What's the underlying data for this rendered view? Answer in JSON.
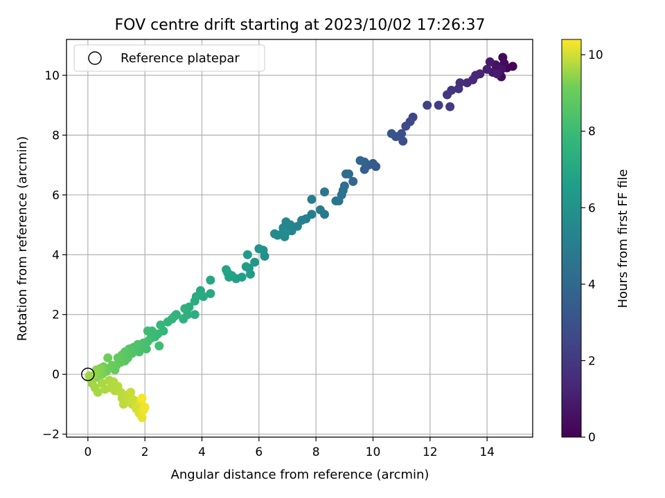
{
  "chart_data": {
    "type": "scatter",
    "title": "FOV centre drift starting at 2023/10/02 17:26:37",
    "xlabel": "Angular distance from reference (arcmin)",
    "ylabel": "Rotation from reference (arcmin)",
    "xlim": [
      -0.75,
      15.6
    ],
    "ylim": [
      -2.1,
      11.2
    ],
    "xticks": [
      0,
      2,
      4,
      6,
      8,
      10,
      12,
      14
    ],
    "yticks": [
      -2,
      0,
      2,
      4,
      6,
      8,
      10
    ],
    "grid": true,
    "legend": {
      "placement": "top-left",
      "entries": [
        "Reference platepar"
      ]
    },
    "reference_point": {
      "x": 0,
      "y": 0,
      "marker": "open-circle",
      "label": "Reference platepar"
    },
    "colorbar": {
      "label": "Hours from first FF file",
      "range": [
        0,
        10.4
      ],
      "ticks": [
        0,
        2,
        4,
        6,
        8,
        10
      ],
      "colormap": "viridis"
    },
    "series": [
      {
        "color_by": "hours",
        "points": [
          {
            "x": 14.9,
            "y": 10.3,
            "hours": 0.05
          },
          {
            "x": 14.7,
            "y": 10.25,
            "hours": 0.12
          },
          {
            "x": 14.55,
            "y": 10.6,
            "hours": 0.2
          },
          {
            "x": 14.5,
            "y": 9.95,
            "hours": 0.28
          },
          {
            "x": 14.6,
            "y": 10.4,
            "hours": 0.35
          },
          {
            "x": 14.4,
            "y": 10.15,
            "hours": 0.45
          },
          {
            "x": 14.3,
            "y": 10.35,
            "hours": 0.55
          },
          {
            "x": 14.5,
            "y": 10.2,
            "hours": 0.65
          },
          {
            "x": 14.2,
            "y": 10.1,
            "hours": 0.75
          },
          {
            "x": 14.1,
            "y": 10.45,
            "hours": 0.85
          },
          {
            "x": 14.35,
            "y": 10.05,
            "hours": 0.95
          },
          {
            "x": 14.0,
            "y": 10.2,
            "hours": 1.05
          },
          {
            "x": 13.75,
            "y": 10.05,
            "hours": 1.2
          },
          {
            "x": 13.6,
            "y": 10.0,
            "hours": 1.3
          },
          {
            "x": 13.5,
            "y": 9.85,
            "hours": 1.4
          },
          {
            "x": 13.3,
            "y": 9.75,
            "hours": 1.5
          },
          {
            "x": 13.05,
            "y": 9.75,
            "hours": 1.6
          },
          {
            "x": 13.0,
            "y": 9.55,
            "hours": 1.7
          },
          {
            "x": 12.75,
            "y": 9.5,
            "hours": 1.85
          },
          {
            "x": 12.6,
            "y": 9.35,
            "hours": 1.95
          },
          {
            "x": 12.7,
            "y": 8.95,
            "hours": 2.05
          },
          {
            "x": 12.3,
            "y": 9.0,
            "hours": 2.2
          },
          {
            "x": 11.9,
            "y": 9.0,
            "hours": 2.35
          },
          {
            "x": 11.4,
            "y": 8.6,
            "hours": 2.5
          },
          {
            "x": 11.3,
            "y": 8.45,
            "hours": 2.6
          },
          {
            "x": 11.15,
            "y": 8.3,
            "hours": 2.7
          },
          {
            "x": 11.05,
            "y": 7.8,
            "hours": 2.8
          },
          {
            "x": 11.0,
            "y": 8.05,
            "hours": 2.9
          },
          {
            "x": 10.8,
            "y": 7.95,
            "hours": 3.0
          },
          {
            "x": 10.65,
            "y": 8.05,
            "hours": 3.1
          },
          {
            "x": 10.1,
            "y": 6.95,
            "hours": 3.3
          },
          {
            "x": 10.0,
            "y": 7.05,
            "hours": 3.4
          },
          {
            "x": 9.85,
            "y": 7.0,
            "hours": 3.5
          },
          {
            "x": 9.7,
            "y": 6.85,
            "hours": 3.6
          },
          {
            "x": 9.7,
            "y": 7.1,
            "hours": 3.7
          },
          {
            "x": 9.55,
            "y": 7.15,
            "hours": 3.8
          },
          {
            "x": 9.3,
            "y": 6.45,
            "hours": 3.95
          },
          {
            "x": 9.15,
            "y": 6.7,
            "hours": 4.05
          },
          {
            "x": 9.05,
            "y": 6.7,
            "hours": 4.15
          },
          {
            "x": 9.0,
            "y": 6.3,
            "hours": 4.25
          },
          {
            "x": 8.95,
            "y": 6.15,
            "hours": 4.35
          },
          {
            "x": 8.9,
            "y": 6.0,
            "hours": 4.45
          },
          {
            "x": 8.7,
            "y": 5.8,
            "hours": 4.55
          },
          {
            "x": 8.8,
            "y": 5.8,
            "hours": 4.6
          },
          {
            "x": 8.3,
            "y": 6.1,
            "hours": 4.7
          },
          {
            "x": 8.3,
            "y": 5.35,
            "hours": 4.8
          },
          {
            "x": 8.15,
            "y": 5.5,
            "hours": 4.9
          },
          {
            "x": 7.85,
            "y": 5.85,
            "hours": 5.0
          },
          {
            "x": 7.85,
            "y": 5.35,
            "hours": 5.05
          },
          {
            "x": 7.65,
            "y": 5.2,
            "hours": 5.1
          },
          {
            "x": 7.5,
            "y": 5.15,
            "hours": 5.2
          },
          {
            "x": 7.35,
            "y": 4.95,
            "hours": 5.25
          },
          {
            "x": 7.15,
            "y": 4.8,
            "hours": 5.3
          },
          {
            "x": 7.1,
            "y": 5.0,
            "hours": 5.35
          },
          {
            "x": 6.95,
            "y": 5.1,
            "hours": 5.4
          },
          {
            "x": 6.85,
            "y": 4.9,
            "hours": 5.45
          },
          {
            "x": 6.8,
            "y": 4.7,
            "hours": 5.5
          },
          {
            "x": 6.65,
            "y": 4.65,
            "hours": 5.55
          },
          {
            "x": 6.55,
            "y": 4.7,
            "hours": 5.6
          },
          {
            "x": 6.9,
            "y": 4.6,
            "hours": 5.65
          },
          {
            "x": 6.95,
            "y": 4.75,
            "hours": 5.7
          },
          {
            "x": 6.2,
            "y": 3.95,
            "hours": 5.85
          },
          {
            "x": 6.15,
            "y": 4.15,
            "hours": 5.95
          },
          {
            "x": 6.0,
            "y": 4.2,
            "hours": 6.05
          },
          {
            "x": 5.85,
            "y": 3.75,
            "hours": 6.2
          },
          {
            "x": 5.65,
            "y": 3.55,
            "hours": 6.3
          },
          {
            "x": 5.6,
            "y": 4.0,
            "hours": 6.4
          },
          {
            "x": 5.55,
            "y": 3.6,
            "hours": 6.45
          },
          {
            "x": 5.7,
            "y": 3.35,
            "hours": 6.5
          },
          {
            "x": 5.4,
            "y": 3.25,
            "hours": 6.6
          },
          {
            "x": 5.2,
            "y": 3.2,
            "hours": 6.65
          },
          {
            "x": 5.05,
            "y": 3.3,
            "hours": 6.7
          },
          {
            "x": 4.95,
            "y": 3.25,
            "hours": 6.75
          },
          {
            "x": 4.9,
            "y": 3.4,
            "hours": 6.8
          },
          {
            "x": 4.85,
            "y": 3.5,
            "hours": 6.85
          },
          {
            "x": 4.3,
            "y": 3.15,
            "hours": 6.95
          },
          {
            "x": 4.3,
            "y": 2.7,
            "hours": 7.05
          },
          {
            "x": 4.05,
            "y": 2.6,
            "hours": 7.1
          },
          {
            "x": 3.95,
            "y": 2.8,
            "hours": 7.15
          },
          {
            "x": 3.8,
            "y": 2.6,
            "hours": 7.2
          },
          {
            "x": 3.75,
            "y": 2.45,
            "hours": 7.25
          },
          {
            "x": 3.55,
            "y": 2.25,
            "hours": 7.3
          },
          {
            "x": 3.75,
            "y": 2.0,
            "hours": 7.35
          },
          {
            "x": 3.5,
            "y": 2.0,
            "hours": 7.4
          },
          {
            "x": 3.4,
            "y": 2.2,
            "hours": 7.45
          },
          {
            "x": 3.35,
            "y": 1.85,
            "hours": 7.5
          },
          {
            "x": 3.1,
            "y": 2.0,
            "hours": 7.55
          },
          {
            "x": 3.05,
            "y": 1.95,
            "hours": 7.6
          },
          {
            "x": 2.95,
            "y": 1.85,
            "hours": 7.65
          },
          {
            "x": 2.8,
            "y": 1.75,
            "hours": 7.7
          },
          {
            "x": 2.65,
            "y": 1.45,
            "hours": 7.75
          },
          {
            "x": 2.55,
            "y": 1.65,
            "hours": 7.8
          },
          {
            "x": 2.45,
            "y": 1.35,
            "hours": 7.85
          },
          {
            "x": 2.35,
            "y": 1.25,
            "hours": 7.9
          },
          {
            "x": 2.25,
            "y": 1.45,
            "hours": 7.95
          },
          {
            "x": 2.2,
            "y": 1.2,
            "hours": 8.0
          },
          {
            "x": 2.1,
            "y": 1.45,
            "hours": 8.05
          },
          {
            "x": 2.5,
            "y": 0.95,
            "hours": 8.1
          },
          {
            "x": 2.1,
            "y": 1.1,
            "hours": 8.15
          },
          {
            "x": 2.05,
            "y": 0.85,
            "hours": 8.2
          },
          {
            "x": 1.95,
            "y": 1.05,
            "hours": 8.25
          },
          {
            "x": 1.85,
            "y": 0.95,
            "hours": 8.3
          },
          {
            "x": 1.8,
            "y": 0.75,
            "hours": 8.35
          },
          {
            "x": 1.75,
            "y": 1.0,
            "hours": 8.4
          },
          {
            "x": 1.6,
            "y": 0.9,
            "hours": 8.45
          },
          {
            "x": 1.55,
            "y": 0.7,
            "hours": 8.5
          },
          {
            "x": 1.45,
            "y": 0.85,
            "hours": 8.55
          },
          {
            "x": 1.4,
            "y": 0.55,
            "hours": 8.6
          },
          {
            "x": 1.3,
            "y": 0.75,
            "hours": 8.65
          },
          {
            "x": 1.3,
            "y": 0.45,
            "hours": 8.7
          },
          {
            "x": 1.2,
            "y": 0.65,
            "hours": 8.75
          },
          {
            "x": 1.15,
            "y": 0.4,
            "hours": 8.8
          },
          {
            "x": 1.05,
            "y": 0.55,
            "hours": 8.85
          },
          {
            "x": 1.0,
            "y": 0.3,
            "hours": 8.9
          },
          {
            "x": 0.95,
            "y": 0.15,
            "hours": 8.95
          },
          {
            "x": 0.85,
            "y": 0.3,
            "hours": 9.0
          },
          {
            "x": 0.75,
            "y": 0.2,
            "hours": 9.05
          },
          {
            "x": 0.7,
            "y": 0.55,
            "hours": 9.1
          },
          {
            "x": 0.65,
            "y": 0.1,
            "hours": 9.15
          },
          {
            "x": 0.55,
            "y": 0.25,
            "hours": 9.2
          },
          {
            "x": 0.5,
            "y": 0.0,
            "hours": 9.25
          },
          {
            "x": 0.45,
            "y": 0.2,
            "hours": 9.3
          },
          {
            "x": 0.35,
            "y": -0.1,
            "hours": 9.35
          },
          {
            "x": 0.3,
            "y": 0.15,
            "hours": 9.4
          },
          {
            "x": 0.2,
            "y": -0.05,
            "hours": 9.45
          },
          {
            "x": 0.1,
            "y": -0.15,
            "hours": 9.5
          },
          {
            "x": 0.15,
            "y": -0.3,
            "hours": 9.55
          },
          {
            "x": 0.05,
            "y": -0.05,
            "hours": 9.6
          },
          {
            "x": 0.25,
            "y": -0.45,
            "hours": 9.62
          },
          {
            "x": 0.35,
            "y": -0.6,
            "hours": 9.64
          },
          {
            "x": 0.5,
            "y": -0.3,
            "hours": 9.66
          },
          {
            "x": 0.6,
            "y": -0.5,
            "hours": 9.68
          },
          {
            "x": 0.75,
            "y": -0.2,
            "hours": 9.7
          },
          {
            "x": 0.8,
            "y": -0.45,
            "hours": 9.72
          },
          {
            "x": 0.9,
            "y": -0.25,
            "hours": 9.74
          },
          {
            "x": 0.95,
            "y": -0.55,
            "hours": 9.76
          },
          {
            "x": 1.05,
            "y": -0.4,
            "hours": 9.78
          },
          {
            "x": 1.15,
            "y": -0.6,
            "hours": 9.8
          },
          {
            "x": 1.2,
            "y": -0.8,
            "hours": 9.82
          },
          {
            "x": 1.25,
            "y": -1.0,
            "hours": 9.84
          },
          {
            "x": 1.35,
            "y": -0.7,
            "hours": 9.86
          },
          {
            "x": 1.45,
            "y": -0.9,
            "hours": 9.88
          },
          {
            "x": 1.5,
            "y": -0.6,
            "hours": 9.9
          },
          {
            "x": 1.55,
            "y": -1.0,
            "hours": 9.92
          },
          {
            "x": 1.6,
            "y": -0.85,
            "hours": 9.95
          },
          {
            "x": 1.7,
            "y": -1.15,
            "hours": 10.0
          },
          {
            "x": 1.75,
            "y": -1.05,
            "hours": 10.05
          },
          {
            "x": 1.8,
            "y": -1.3,
            "hours": 10.1
          },
          {
            "x": 1.85,
            "y": -0.9,
            "hours": 10.15
          },
          {
            "x": 1.9,
            "y": -1.45,
            "hours": 10.2
          },
          {
            "x": 1.95,
            "y": -1.2,
            "hours": 10.25
          },
          {
            "x": 2.0,
            "y": -1.1,
            "hours": 10.3
          },
          {
            "x": 1.9,
            "y": -0.8,
            "hours": 10.35
          }
        ]
      }
    ]
  }
}
